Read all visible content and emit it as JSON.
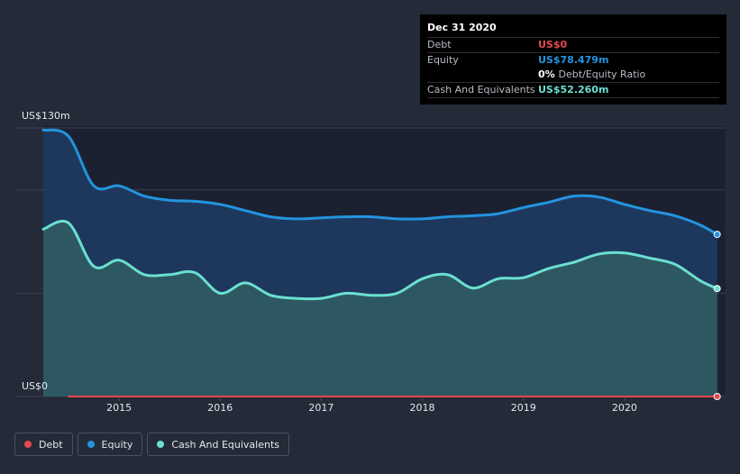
{
  "tooltip": {
    "date": "Dec 31 2020",
    "debt_label": "Debt",
    "debt_value": "US$0",
    "equity_label": "Equity",
    "equity_value": "US$78.479m",
    "ratio_value": "0%",
    "ratio_label": "Debt/Equity Ratio",
    "cash_label": "Cash And Equivalents",
    "cash_value": "US$52.260m"
  },
  "colors": {
    "debt": "#e5484d",
    "equity": "#2394df",
    "cash": "#6bdfd1",
    "background": "#242a37"
  },
  "legend": [
    {
      "label": "Debt",
      "color": "#e5484d"
    },
    {
      "label": "Equity",
      "color": "#2394df"
    },
    {
      "label": "Cash And Equivalents",
      "color": "#6bdfd1"
    }
  ],
  "chart_data": {
    "type": "area",
    "y_top_label": "US$130m",
    "y_bottom_label": "US$0",
    "ylim": [
      0,
      130
    ],
    "xlim": [
      2014.25,
      2021.0
    ],
    "x_ticks": [
      2015,
      2016,
      2017,
      2018,
      2019,
      2020
    ],
    "x_tick_labels": [
      "2015",
      "2016",
      "2017",
      "2018",
      "2019",
      "2020"
    ],
    "grid": true,
    "legend_position": "bottom-left",
    "series": [
      {
        "name": "Equity",
        "x": [
          "2014-04",
          "2014-07",
          "2014-10",
          "2015-01",
          "2015-04",
          "2015-07",
          "2015-10",
          "2016-01",
          "2016-04",
          "2016-07",
          "2016-10",
          "2017-01",
          "2017-04",
          "2017-07",
          "2017-10",
          "2018-01",
          "2018-04",
          "2018-07",
          "2018-10",
          "2019-01",
          "2019-04",
          "2019-07",
          "2019-10",
          "2020-01",
          "2020-04",
          "2020-07",
          "2020-10",
          "2020-12"
        ],
        "values": [
          129,
          126,
          102,
          102,
          97,
          95,
          94.5,
          93,
          90,
          87,
          86,
          86.5,
          87,
          87,
          86,
          86,
          87,
          87.5,
          88.5,
          91.5,
          94,
          97,
          96.5,
          93,
          90,
          87.5,
          83,
          78.479
        ]
      },
      {
        "name": "Cash And Equivalents",
        "x": [
          "2014-04",
          "2014-07",
          "2014-10",
          "2015-01",
          "2015-04",
          "2015-07",
          "2015-10",
          "2016-01",
          "2016-04",
          "2016-07",
          "2016-10",
          "2017-01",
          "2017-04",
          "2017-07",
          "2017-10",
          "2018-01",
          "2018-04",
          "2018-07",
          "2018-10",
          "2019-01",
          "2019-04",
          "2019-07",
          "2019-10",
          "2020-01",
          "2020-04",
          "2020-07",
          "2020-10",
          "2020-12"
        ],
        "values": [
          81,
          84,
          63,
          66,
          59,
          59,
          60,
          50,
          55,
          49,
          47.5,
          47.5,
          50,
          49,
          50,
          57,
          59,
          52.5,
          57,
          57.5,
          62,
          65,
          69,
          69.5,
          67,
          64,
          56,
          52.26
        ]
      },
      {
        "name": "Debt",
        "x": [
          "2014-07",
          "2020-12"
        ],
        "values": [
          0,
          0
        ]
      }
    ]
  }
}
